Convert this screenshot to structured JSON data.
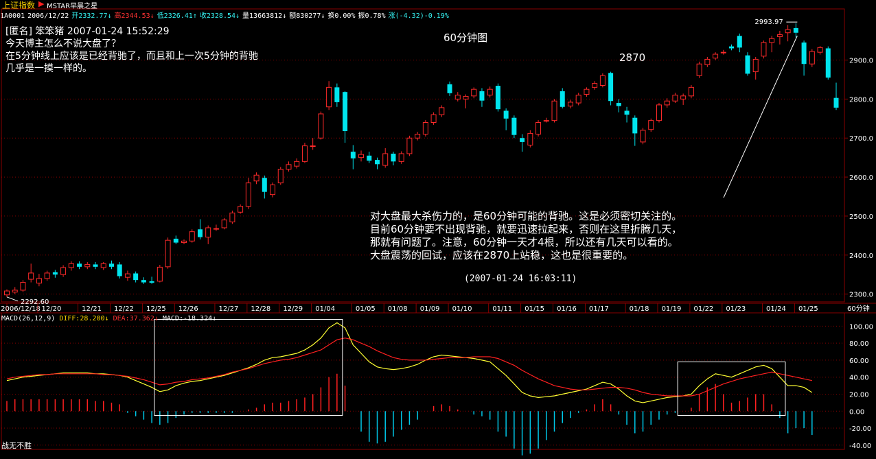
{
  "header": {
    "index_name": "上证指数",
    "indicator_name": "MSTAR早晨之星",
    "quote": [
      {
        "text": "1A0001",
        "color": "#ffffff"
      },
      {
        "text": "2006/12/22",
        "color": "#ffffff"
      },
      {
        "text": "开2332.77↓",
        "color": "#35f0f0"
      },
      {
        "text": "高2344.53↓",
        "color": "#ff3333"
      },
      {
        "text": "低2326.41↑",
        "color": "#35f0f0"
      },
      {
        "text": "收2328.54↓",
        "color": "#35f0f0"
      },
      {
        "text": "量13663812↓",
        "color": "#ffffff"
      },
      {
        "text": "额830277↓",
        "color": "#ffffff"
      },
      {
        "text": "换0.00%",
        "color": "#ffffff"
      },
      {
        "text": "振0.78%",
        "color": "#ffffff"
      },
      {
        "text": "涨(-4.32)-0.19%",
        "color": "#35f0f0"
      }
    ]
  },
  "comment": {
    "lines": [
      "[匿名] 笨笨猪 2007-01-24 15:52:29",
      "今天博主怎么不说大盘了？",
      "在5分钟线上应该是已经背驰了，而且和上一次5分钟的背驰",
      "几乎是一摸一样的。"
    ]
  },
  "annotations": {
    "chart_title": "60分钟图",
    "level_label": "2870",
    "analysis_lines": [
      "对大盘最大杀伤力的，是60分钟可能的背驰。这是必须密切关注的。",
      "目前60分钟要不出现背驰，就要迅速拉起来，否则在这里折腾几天，",
      "那就有问题了。注意，60分钟一天才4根，所以还有几天可以看的。",
      "大盘震荡的回试，应该在2870上站稳，这也是很重要的。"
    ],
    "analysis_time": "(2007-01-24 16:03:11)",
    "high_label": "2993.97",
    "low_label": "2292.60"
  },
  "macd_legend": {
    "params": "MACD(26,12,9)",
    "diff": "DIFF:28.200↓",
    "dea": "DEA:37.362↓",
    "macd": "MACD:-18.324↓"
  },
  "footer": "战无不胜",
  "colors": {
    "up": "#ff2a2a",
    "down": "#00e5ee",
    "grid": "#8a0000",
    "axis_text": "#ffffff",
    "diff": "#ffff33",
    "dea": "#ff2020",
    "macd_pos": "#ff2020",
    "macd_neg": "#00c8e8"
  },
  "chart_data": [
    {
      "type": "candlestick",
      "period_label": "60分钟",
      "date_ticks": [
        "2006/12/18",
        "12/20",
        "12/21",
        "12/22",
        "12/25",
        "12/26",
        "12/27",
        "12/28",
        "12/29",
        "01/04",
        "01/05",
        "01/08",
        "01/09",
        "01/10",
        "01/11",
        "01/15",
        "01/16",
        "01/17",
        "01/18",
        "01/19",
        "01/22",
        "01/23",
        "01/24",
        "01/25"
      ],
      "ylim": [
        2280,
        3010
      ],
      "y_ticks": [
        2300,
        2400,
        2500,
        2600,
        2700,
        2800,
        2900
      ],
      "candles": [
        {
          "o": 2298,
          "c": 2308,
          "h": 2312,
          "l": 2292.6
        },
        {
          "o": 2305,
          "c": 2310,
          "h": 2318,
          "l": 2300
        },
        {
          "o": 2310,
          "c": 2330,
          "h": 2336,
          "l": 2305
        },
        {
          "o": 2338,
          "c": 2354,
          "h": 2378,
          "l": 2330
        },
        {
          "o": 2328,
          "c": 2340,
          "h": 2352,
          "l": 2320
        },
        {
          "o": 2340,
          "c": 2354,
          "h": 2360,
          "l": 2334
        },
        {
          "o": 2356,
          "c": 2350,
          "h": 2362,
          "l": 2342
        },
        {
          "o": 2350,
          "c": 2368,
          "h": 2374,
          "l": 2344
        },
        {
          "o": 2368,
          "c": 2378,
          "h": 2384,
          "l": 2360
        },
        {
          "o": 2378,
          "c": 2370,
          "h": 2384,
          "l": 2364
        },
        {
          "o": 2370,
          "c": 2376,
          "h": 2382,
          "l": 2364
        },
        {
          "o": 2376,
          "c": 2370,
          "h": 2382,
          "l": 2364
        },
        {
          "o": 2368,
          "c": 2378,
          "h": 2382,
          "l": 2362
        },
        {
          "o": 2378,
          "c": 2370,
          "h": 2386,
          "l": 2364
        },
        {
          "o": 2376,
          "c": 2346,
          "h": 2382,
          "l": 2340
        },
        {
          "o": 2343,
          "c": 2352,
          "h": 2360,
          "l": 2334
        },
        {
          "o": 2353,
          "c": 2336,
          "h": 2358,
          "l": 2330
        },
        {
          "o": 2336,
          "c": 2330,
          "h": 2343,
          "l": 2326
        },
        {
          "o": 2333,
          "c": 2329,
          "h": 2344.5,
          "l": 2326.4
        },
        {
          "o": 2333,
          "c": 2369,
          "h": 2375,
          "l": 2330
        },
        {
          "o": 2370,
          "c": 2438,
          "h": 2445,
          "l": 2365
        },
        {
          "o": 2442,
          "c": 2432,
          "h": 2450,
          "l": 2428
        },
        {
          "o": 2432,
          "c": 2436,
          "h": 2440,
          "l": 2428
        },
        {
          "o": 2436,
          "c": 2460,
          "h": 2466,
          "l": 2432
        },
        {
          "o": 2466,
          "c": 2446,
          "h": 2492,
          "l": 2440
        },
        {
          "o": 2446,
          "c": 2470,
          "h": 2476,
          "l": 2428
        },
        {
          "o": 2468,
          "c": 2468,
          "h": 2478,
          "l": 2462
        },
        {
          "o": 2470,
          "c": 2490,
          "h": 2495,
          "l": 2466
        },
        {
          "o": 2485,
          "c": 2508,
          "h": 2514,
          "l": 2480
        },
        {
          "o": 2510,
          "c": 2525,
          "h": 2530,
          "l": 2506
        },
        {
          "o": 2525,
          "c": 2585,
          "h": 2598,
          "l": 2518
        },
        {
          "o": 2590,
          "c": 2605,
          "h": 2612,
          "l": 2582
        },
        {
          "o": 2598,
          "c": 2562,
          "h": 2604,
          "l": 2545
        },
        {
          "o": 2555,
          "c": 2580,
          "h": 2586,
          "l": 2548
        },
        {
          "o": 2585,
          "c": 2620,
          "h": 2626,
          "l": 2580
        },
        {
          "o": 2620,
          "c": 2632,
          "h": 2640,
          "l": 2614
        },
        {
          "o": 2628,
          "c": 2640,
          "h": 2648,
          "l": 2622
        },
        {
          "o": 2640,
          "c": 2680,
          "h": 2688,
          "l": 2636
        },
        {
          "o": 2680,
          "c": 2680,
          "h": 2700,
          "l": 2670
        },
        {
          "o": 2700,
          "c": 2762,
          "h": 2768,
          "l": 2696
        },
        {
          "o": 2780,
          "c": 2830,
          "h": 2846,
          "l": 2772
        },
        {
          "o": 2830,
          "c": 2792,
          "h": 2840,
          "l": 2780
        },
        {
          "o": 2818,
          "c": 2718,
          "h": 2820,
          "l": 2688
        },
        {
          "o": 2665,
          "c": 2648,
          "h": 2682,
          "l": 2620
        },
        {
          "o": 2650,
          "c": 2658,
          "h": 2668,
          "l": 2640
        },
        {
          "o": 2655,
          "c": 2642,
          "h": 2665,
          "l": 2636
        },
        {
          "o": 2644,
          "c": 2633,
          "h": 2650,
          "l": 2620
        },
        {
          "o": 2630,
          "c": 2660,
          "h": 2674,
          "l": 2624
        },
        {
          "o": 2660,
          "c": 2640,
          "h": 2665,
          "l": 2630
        },
        {
          "o": 2640,
          "c": 2660,
          "h": 2666,
          "l": 2634
        },
        {
          "o": 2660,
          "c": 2700,
          "h": 2706,
          "l": 2654
        },
        {
          "o": 2700,
          "c": 2710,
          "h": 2716,
          "l": 2694
        },
        {
          "o": 2710,
          "c": 2740,
          "h": 2746,
          "l": 2704
        },
        {
          "o": 2740,
          "c": 2760,
          "h": 2766,
          "l": 2734
        },
        {
          "o": 2760,
          "c": 2778,
          "h": 2784,
          "l": 2754
        },
        {
          "o": 2838,
          "c": 2815,
          "h": 2845,
          "l": 2808
        },
        {
          "o": 2800,
          "c": 2810,
          "h": 2818,
          "l": 2794
        },
        {
          "o": 2800,
          "c": 2807,
          "h": 2812,
          "l": 2776
        },
        {
          "o": 2808,
          "c": 2825,
          "h": 2830,
          "l": 2802
        },
        {
          "o": 2820,
          "c": 2796,
          "h": 2828,
          "l": 2780
        },
        {
          "o": 2810,
          "c": 2825,
          "h": 2832,
          "l": 2804
        },
        {
          "o": 2834,
          "c": 2774,
          "h": 2840,
          "l": 2768
        },
        {
          "o": 2770,
          "c": 2750,
          "h": 2776,
          "l": 2720
        },
        {
          "o": 2752,
          "c": 2708,
          "h": 2758,
          "l": 2700
        },
        {
          "o": 2700,
          "c": 2690,
          "h": 2710,
          "l": 2665
        },
        {
          "o": 2682,
          "c": 2712,
          "h": 2720,
          "l": 2676
        },
        {
          "o": 2710,
          "c": 2740,
          "h": 2746,
          "l": 2704
        },
        {
          "o": 2745,
          "c": 2745,
          "h": 2752,
          "l": 2740
        },
        {
          "o": 2745,
          "c": 2795,
          "h": 2800,
          "l": 2740
        },
        {
          "o": 2820,
          "c": 2780,
          "h": 2828,
          "l": 2776
        },
        {
          "o": 2782,
          "c": 2792,
          "h": 2798,
          "l": 2776
        },
        {
          "o": 2790,
          "c": 2810,
          "h": 2816,
          "l": 2784
        },
        {
          "o": 2812,
          "c": 2825,
          "h": 2830,
          "l": 2806
        },
        {
          "o": 2830,
          "c": 2840,
          "h": 2846,
          "l": 2824
        },
        {
          "o": 2835,
          "c": 2860,
          "h": 2866,
          "l": 2830
        },
        {
          "o": 2867,
          "c": 2795,
          "h": 2870,
          "l": 2784
        },
        {
          "o": 2790,
          "c": 2782,
          "h": 2800,
          "l": 2766
        },
        {
          "o": 2770,
          "c": 2760,
          "h": 2780,
          "l": 2740
        },
        {
          "o": 2752,
          "c": 2712,
          "h": 2758,
          "l": 2680
        },
        {
          "o": 2690,
          "c": 2720,
          "h": 2726,
          "l": 2684
        },
        {
          "o": 2722,
          "c": 2745,
          "h": 2750,
          "l": 2716
        },
        {
          "o": 2745,
          "c": 2785,
          "h": 2790,
          "l": 2740
        },
        {
          "o": 2785,
          "c": 2795,
          "h": 2802,
          "l": 2778
        },
        {
          "o": 2795,
          "c": 2810,
          "h": 2816,
          "l": 2790
        },
        {
          "o": 2800,
          "c": 2808,
          "h": 2814,
          "l": 2785
        },
        {
          "o": 2808,
          "c": 2830,
          "h": 2836,
          "l": 2802
        },
        {
          "o": 2860,
          "c": 2890,
          "h": 2896,
          "l": 2854
        },
        {
          "o": 2888,
          "c": 2902,
          "h": 2908,
          "l": 2882
        },
        {
          "o": 2905,
          "c": 2915,
          "h": 2920,
          "l": 2900
        },
        {
          "o": 2920,
          "c": 2920,
          "h": 2926,
          "l": 2914
        },
        {
          "o": 2935,
          "c": 2930,
          "h": 2940,
          "l": 2925
        },
        {
          "o": 2962,
          "c": 2932,
          "h": 2968,
          "l": 2920
        },
        {
          "o": 2912,
          "c": 2865,
          "h": 2920,
          "l": 2860
        },
        {
          "o": 2870,
          "c": 2902,
          "h": 2908,
          "l": 2850
        },
        {
          "o": 2910,
          "c": 2945,
          "h": 2950,
          "l": 2904
        },
        {
          "o": 2945,
          "c": 2955,
          "h": 2962,
          "l": 2920
        },
        {
          "o": 2960,
          "c": 2965,
          "h": 2975,
          "l": 2940
        },
        {
          "o": 2970,
          "c": 2978,
          "h": 2990,
          "l": 2948
        },
        {
          "o": 2982,
          "c": 2970,
          "h": 2993.97,
          "l": 2958
        },
        {
          "o": 2945,
          "c": 2890,
          "h": 2950,
          "l": 2860
        },
        {
          "o": 2890,
          "c": 2922,
          "h": 2928,
          "l": 2882
        },
        {
          "o": 2920,
          "c": 2932,
          "h": 2936,
          "l": 2914
        },
        {
          "o": 2930,
          "c": 2855,
          "h": 2935,
          "l": 2850
        },
        {
          "o": 2803,
          "c": 2778,
          "h": 2842,
          "l": 2772
        }
      ],
      "high": 2993.97,
      "low": 2292.6
    },
    {
      "type": "line",
      "title": "MACD(26,12,9)",
      "ylim": [
        -45,
        110
      ],
      "y_ticks": [
        -40,
        -20,
        0,
        20,
        40,
        60,
        80,
        100
      ],
      "series": [
        {
          "name": "DIFF",
          "color": "#ffff33",
          "values": [
            36,
            38,
            40,
            41,
            42,
            43,
            44,
            45,
            45,
            45,
            45,
            44,
            44,
            43,
            42,
            40,
            36,
            32,
            28,
            23,
            25,
            30,
            33,
            35,
            36,
            38,
            40,
            42,
            45,
            48,
            51,
            55,
            60,
            63,
            64,
            66,
            68,
            72,
            78,
            86,
            98,
            104,
            98,
            78,
            68,
            58,
            52,
            50,
            49,
            50,
            52,
            55,
            60,
            64,
            66,
            65,
            64,
            63,
            62,
            60,
            58,
            50,
            42,
            32,
            22,
            18,
            16,
            17,
            18,
            20,
            22,
            24,
            26,
            30,
            34,
            32,
            26,
            18,
            12,
            10,
            12,
            14,
            16,
            17,
            18,
            20,
            30,
            38,
            44,
            42,
            40,
            44,
            48,
            52,
            54,
            50,
            40,
            30,
            30,
            28,
            22
          ]
        },
        {
          "name": "DEA",
          "color": "#ff2020",
          "values": [
            38,
            40,
            41,
            42,
            43,
            43,
            44,
            44,
            44,
            44,
            44,
            44,
            43,
            43,
            42,
            41,
            39,
            37,
            34,
            31,
            32,
            34,
            35,
            37,
            38,
            39,
            41,
            43,
            46,
            48,
            50,
            53,
            56,
            58,
            60,
            61,
            63,
            66,
            69,
            72,
            78,
            84,
            86,
            84,
            80,
            76,
            71,
            67,
            63,
            61,
            60,
            60,
            60,
            61,
            62,
            63,
            63,
            63,
            64,
            64,
            64,
            62,
            58,
            54,
            48,
            43,
            38,
            34,
            30,
            28,
            26,
            25,
            25,
            26,
            27,
            28,
            28,
            27,
            25,
            22,
            20,
            19,
            18,
            18,
            18,
            18,
            20,
            24,
            28,
            32,
            35,
            38,
            40,
            42,
            44,
            46,
            44,
            42,
            40,
            38,
            36
          ]
        },
        {
          "name": "MACD",
          "color": "#ff2020",
          "bars": [
            12,
            14,
            14,
            14,
            14,
            14,
            14,
            14,
            14,
            14,
            14,
            12,
            12,
            10,
            8,
            -2,
            -6,
            -10,
            -14,
            -16,
            -14,
            -8,
            -4,
            -2,
            -2,
            -2,
            -2,
            -2,
            -2,
            0,
            2,
            4,
            8,
            10,
            10,
            12,
            14,
            16,
            20,
            28,
            40,
            44,
            30,
            0,
            -24,
            -36,
            -38,
            -36,
            -30,
            -22,
            -16,
            -10,
            0,
            6,
            8,
            6,
            2,
            0,
            -4,
            -6,
            -10,
            -24,
            -30,
            -44,
            -52,
            -50,
            -44,
            -34,
            -24,
            -14,
            -8,
            -2,
            2,
            8,
            14,
            8,
            -4,
            -16,
            -26,
            -24,
            -16,
            -10,
            -4,
            -2,
            0,
            4,
            20,
            28,
            32,
            20,
            10,
            12,
            16,
            20,
            20,
            8,
            -8,
            -26,
            -20,
            -20,
            -28
          ]
        }
      ]
    }
  ]
}
